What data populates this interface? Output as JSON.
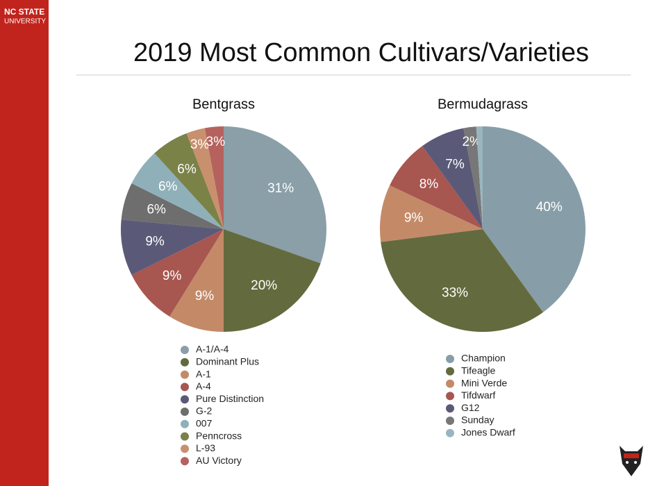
{
  "header": {
    "logo_line1": "NC STATE",
    "logo_line2": "UNIVERSITY",
    "title": "2019 Most Common Cultivars/Varieties"
  },
  "chart_data": [
    {
      "type": "pie",
      "title": "Bentgrass",
      "categories": [
        "A-1/A-4",
        "Dominant Plus",
        "A-1",
        "A-4",
        "Pure Distinction",
        "G-2",
        "007",
        "Penncross",
        "L-93",
        "AU Victory"
      ],
      "values": [
        31,
        20,
        9,
        9,
        9,
        6,
        6,
        6,
        3,
        3
      ],
      "value_labels": [
        "31%",
        "20%",
        "9%",
        "9%",
        "9%",
        "6%",
        "6%",
        "6%",
        "3%",
        "3%"
      ],
      "colors": [
        "#8a9fa8",
        "#636b3e",
        "#c48a68",
        "#a85650",
        "#5a5a78",
        "#6e6e6e",
        "#8fb0b8",
        "#7a8248",
        "#c9906e",
        "#b5625e"
      ]
    },
    {
      "type": "pie",
      "title": "Bermudagrass",
      "categories": [
        "Champion",
        "Tifeagle",
        "Mini Verde",
        "Tifdwarf",
        "G12",
        "Sunday",
        "Jones Dwarf"
      ],
      "values": [
        40,
        33,
        9,
        8,
        7,
        2,
        1
      ],
      "value_labels": [
        "40%",
        "33%",
        "9%",
        "8%",
        "7%",
        "2%",
        null
      ],
      "colors": [
        "#879ea8",
        "#636b3e",
        "#c48a68",
        "#a85650",
        "#5a5a78",
        "#777777",
        "#9ab5bf"
      ]
    }
  ]
}
